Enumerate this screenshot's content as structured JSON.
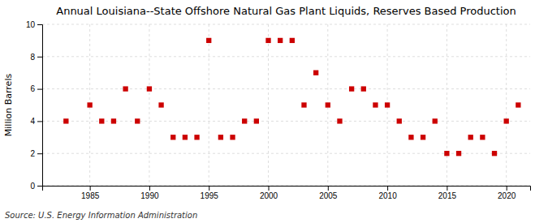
{
  "chart_data": {
    "type": "scatter",
    "title": "Annual Louisiana--State Offshore Natural Gas Plant Liquids, Reserves Based Production",
    "ylabel": "Million Barrels",
    "source": "Source: U.S. Energy Information Administration",
    "x": [
      1983,
      1985,
      1986,
      1987,
      1988,
      1989,
      1990,
      1991,
      1992,
      1993,
      1994,
      1995,
      1996,
      1997,
      1998,
      1999,
      2000,
      2001,
      2002,
      2003,
      2004,
      2005,
      2006,
      2007,
      2008,
      2009,
      2010,
      2011,
      2012,
      2013,
      2014,
      2015,
      2016,
      2017,
      2018,
      2019,
      2020,
      2021
    ],
    "values": [
      4,
      5,
      4,
      4,
      6,
      4,
      6,
      5,
      3,
      3,
      3,
      9,
      3,
      3,
      4,
      4,
      9,
      9,
      9,
      5,
      7,
      5,
      4,
      6,
      6,
      5,
      5,
      4,
      3,
      3,
      4,
      2,
      2,
      3,
      3,
      2,
      4,
      5
    ],
    "color": "#cc0000",
    "marker": "square",
    "xlim": [
      1981,
      2022
    ],
    "ylim": [
      0,
      10
    ],
    "xticks": [
      1985,
      1990,
      1995,
      2000,
      2005,
      2010,
      2015,
      2020
    ],
    "yticks": [
      0,
      2,
      4,
      6,
      8,
      10
    ],
    "grid": true
  }
}
